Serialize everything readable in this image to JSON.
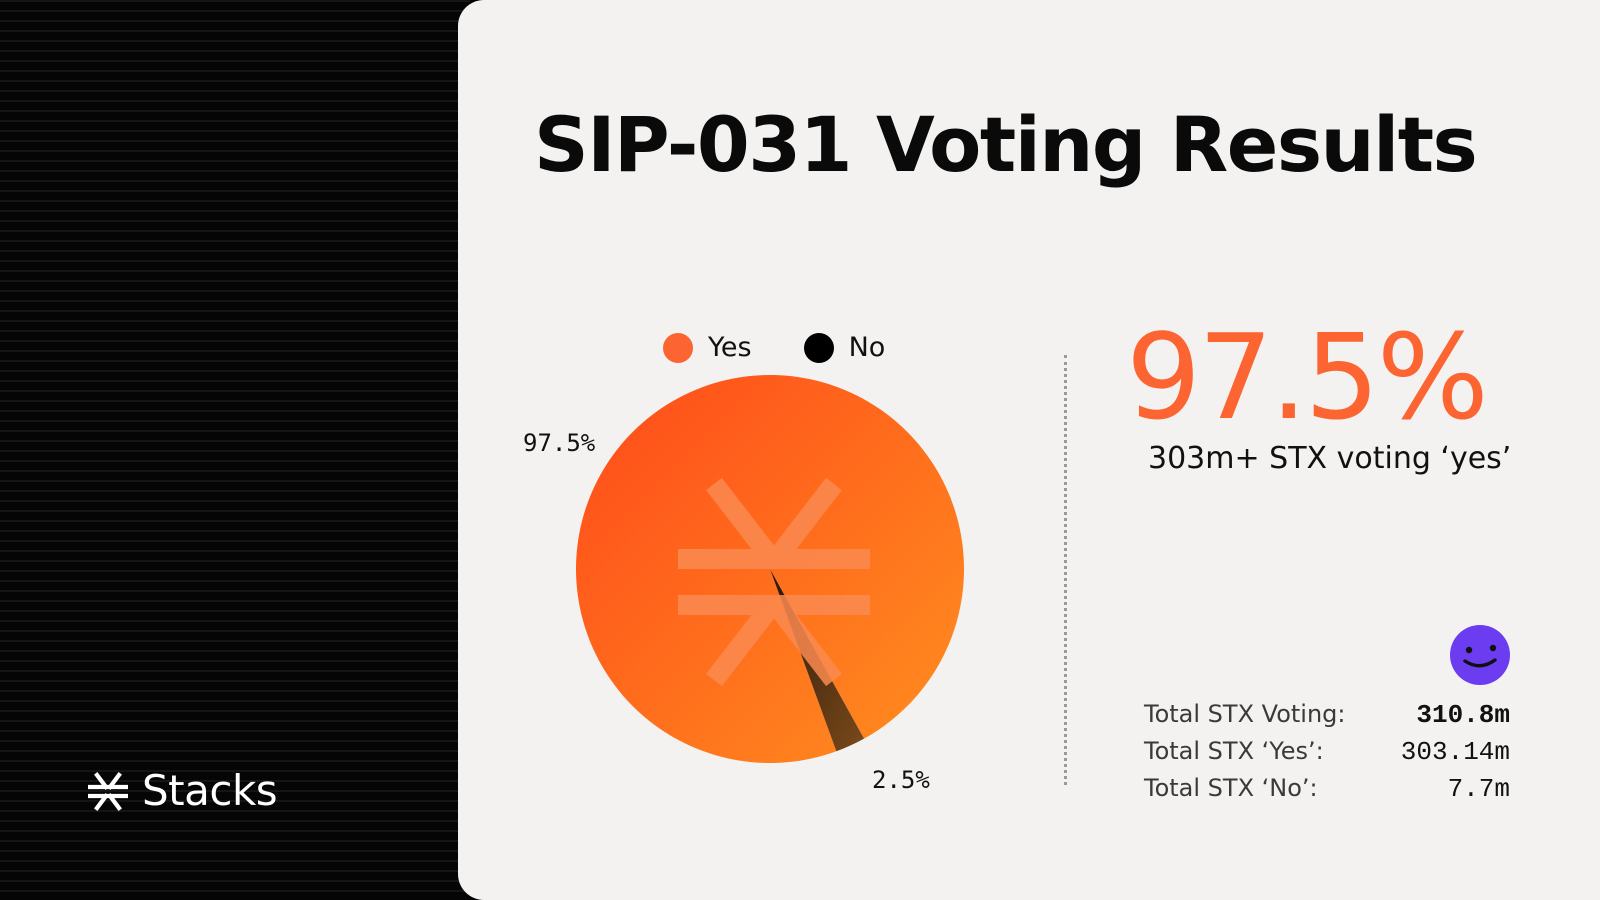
{
  "brand": {
    "name": "Stacks",
    "logo_icon": "stacks-logo-icon"
  },
  "title": "SIP-031 Voting Results",
  "colors": {
    "yes": "#fc6432",
    "no": "#000000",
    "card_bg": "#f3f2f0",
    "accent": "#fc6432",
    "avatar": "#6b3cf0"
  },
  "chart_data": {
    "type": "pie",
    "title": "",
    "categories": [
      "Yes",
      "No"
    ],
    "values": [
      97.5,
      2.5
    ],
    "legend": {
      "placement": "top",
      "entries": [
        "Yes",
        "No"
      ]
    },
    "data_labels": [
      "97.5%",
      "2.5%"
    ]
  },
  "highlight": {
    "value": "97.5%",
    "subtitle": "303m+ STX voting ‘yes’"
  },
  "avatar_icon": "smiley-avatar-icon",
  "stats": [
    {
      "label": "Total STX Voting:",
      "value": "310.8m"
    },
    {
      "label": "Total STX ‘Yes’:",
      "value": "303.14m"
    },
    {
      "label": "Total STX ‘No’:",
      "value": "7.7m"
    }
  ]
}
